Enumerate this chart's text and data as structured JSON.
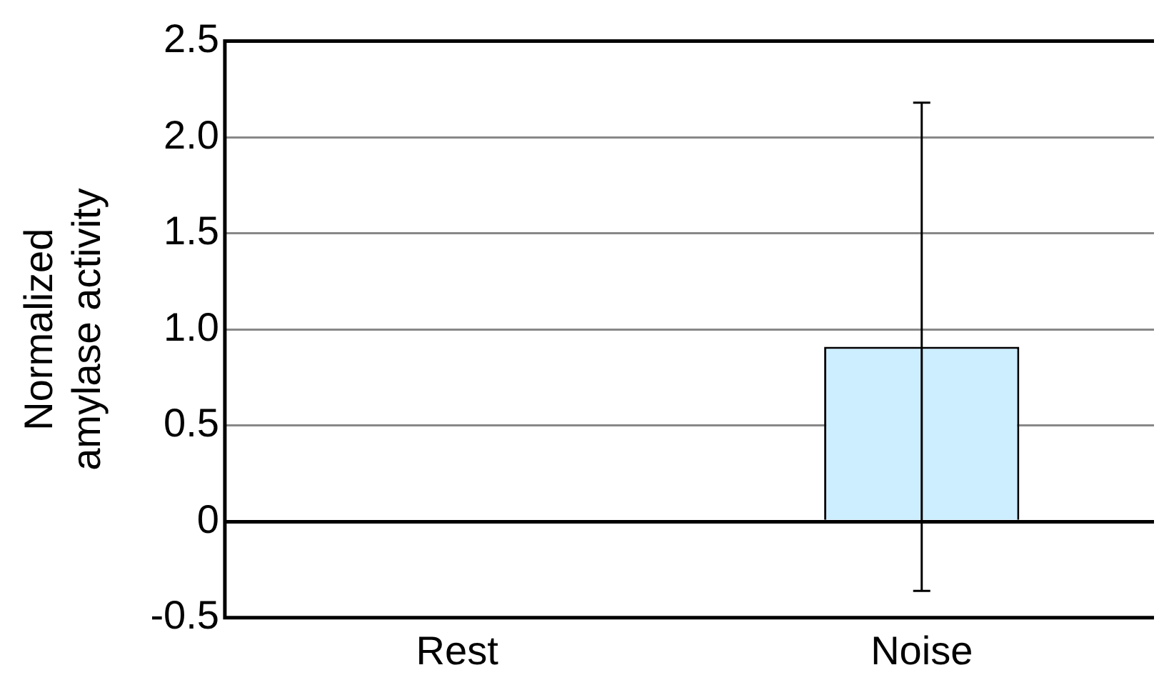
{
  "chart_data": {
    "type": "bar",
    "ylabel": "Normalized\namylase activity",
    "categories": [
      "Rest",
      "Noise"
    ],
    "values": [
      0,
      0.91
    ],
    "color": "#cceeff",
    "errors": [
      null,
      [
        -0.36,
        2.18
      ]
    ],
    "ylim": [
      -0.5,
      2.5
    ],
    "yticks": [
      -0.5,
      0,
      0.5,
      {
        "value": 1,
        "label": "1.0"
      },
      1.5,
      {
        "value": 2,
        "label": "2.0"
      },
      2.5
    ],
    "grid": "y",
    "legend": false
  }
}
